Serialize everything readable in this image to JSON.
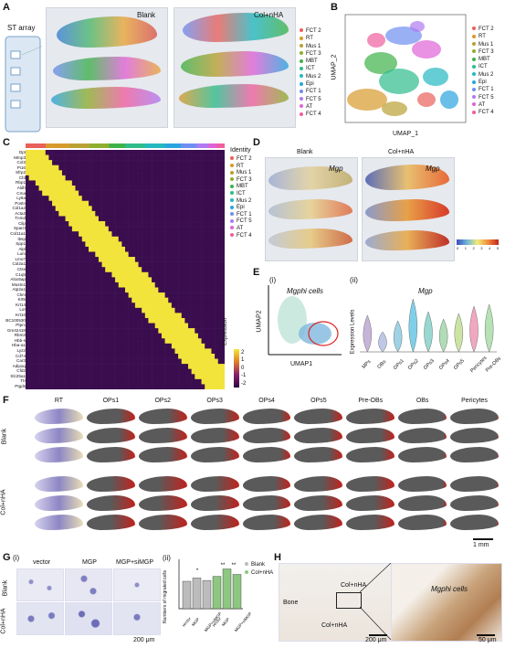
{
  "panels": {
    "A": {
      "label": "A",
      "st_array": "ST array",
      "blank": "Blank",
      "col_nha": "Col+nHA",
      "legend": [
        "FCT 2",
        "RT",
        "Mus 1",
        "FCT 3",
        "MBT",
        "ICT",
        "Mus 2",
        "Epi",
        "FCT 1",
        "FCT 5",
        "AT",
        "FCT 4"
      ]
    },
    "B": {
      "label": "B",
      "xlabel": "UMAP_1",
      "ylabel": "UMAP_2",
      "legend": [
        "FCT 2",
        "RT",
        "Mus 1",
        "FCT 3",
        "MBT",
        "ICT",
        "Mus 2",
        "Epi",
        "FCT 1",
        "FCT 5",
        "AT",
        "FCT 4"
      ],
      "legend_colors": [
        "#e8615a",
        "#d79a2b",
        "#b9a133",
        "#8fae2f",
        "#3fb24a",
        "#2ebc8c",
        "#24b8c0",
        "#2aa4de",
        "#6f8ef0",
        "#b07af0",
        "#e063d6",
        "#ef5f9e"
      ]
    },
    "C": {
      "label": "C",
      "identity": "Identity",
      "expression": "Expression",
      "genes": [
        "Dpt",
        "Mmp3",
        "Col3",
        "Pi16",
        "Sfrp2",
        "Cfd",
        "Rbp1",
        "Aldh",
        "Cma",
        "Ly6a",
        "Postn",
        "Col1a2",
        "Acta2",
        "Tnmd",
        "Cilp",
        "Sparcl",
        "Col11a1",
        "Ibsp",
        "Spp1",
        "Alpl",
        "Lum",
        "Lmo7",
        "Col2a1",
        "Ctss",
        "C1qb",
        "Alox5ap",
        "Mustn1",
        "Atp2a1",
        "Ckm",
        "Krt5",
        "Krt14",
        "Lor",
        "Krt10",
        "BC100530",
        "Ptprc",
        "Gm42418",
        "Rbm3",
        "Hbb-s",
        "Hba-a1",
        "Lyz2",
        "Cd74",
        "Car3",
        "Adipoq",
        "Cfd2",
        "Slc25a1",
        "Ttr",
        "Ptgds"
      ],
      "identity_legend": [
        "FCT 2",
        "RT",
        "Mus 1",
        "FCT 3",
        "MBT",
        "ICT",
        "Mus 2",
        "Epi",
        "FCT 1",
        "FCT 5",
        "AT",
        "FCT 4"
      ],
      "scale": [
        "2",
        "1",
        "0",
        "-1",
        "-2"
      ]
    },
    "D": {
      "label": "D",
      "blank": "Blank",
      "col_nha": "Col+nHA",
      "gene": "Mgp",
      "scale": [
        "0",
        "1",
        "2",
        "3",
        "4",
        "5"
      ]
    },
    "E": {
      "label": "E",
      "sub_i": "(i)",
      "sub_ii": "(ii)",
      "cells": "Mgphi cells",
      "umap1": "UMAP1",
      "umap2": "UMAP2",
      "gene": "Mgp",
      "ylabel": "Expression Levels",
      "violins": [
        "MPs",
        "OBs",
        "OPs1",
        "OPs2",
        "OPs3",
        "OPs4",
        "OPs5",
        "Pericytes",
        "Pre-OBs"
      ],
      "violin_colors": [
        "#c7b4d9",
        "#bfc7e6",
        "#9fd3e4",
        "#7fcfe9",
        "#98d8d1",
        "#b0dcb7",
        "#cce3a4",
        "#f2a7c1",
        "#b6e2b6"
      ]
    },
    "F": {
      "label": "F",
      "columns": [
        "RT",
        "OPs1",
        "OPs2",
        "OPs3",
        "OPs4",
        "OPs5",
        "Pre-OBs",
        "OBs",
        "Pericytes"
      ],
      "rows": [
        "Blank",
        "Col+nHA"
      ],
      "scale": "1 mm"
    },
    "G": {
      "label": "G",
      "sub_i": "(i)",
      "sub_ii": "(ii)",
      "columns": [
        "vector",
        "MGP",
        "MGP+siMGP"
      ],
      "rows": [
        "Blank",
        "Col+nHA"
      ],
      "scale": "200 μm",
      "ylabel": "Numbers of migrated cells",
      "legend": [
        "Blank",
        "Col+nHA"
      ],
      "xcats": [
        "vector",
        "MGP",
        "MGP+siMGP",
        "vector",
        "MGP",
        "MGP+siMGP"
      ],
      "sig": [
        "*",
        "**",
        "**"
      ]
    },
    "H": {
      "label": "H",
      "bone": "Bone",
      "col1": "Col+nHA",
      "col2": "Col+nHA",
      "cells": "Mgphi cells",
      "scale1": "200 μm",
      "scale2": "50 μm"
    }
  },
  "chart_data": [
    {
      "type": "bar",
      "title": "",
      "ylabel": "Numbers of migrated cells",
      "categories": [
        "vector",
        "MGP",
        "MGP+siMGP"
      ],
      "series": [
        {
          "name": "Blank",
          "values": [
            100,
            112,
            103
          ]
        },
        {
          "name": "Col+nHA",
          "values": [
            118,
            145,
            125
          ]
        }
      ],
      "ylim": [
        0,
        180
      ]
    }
  ]
}
